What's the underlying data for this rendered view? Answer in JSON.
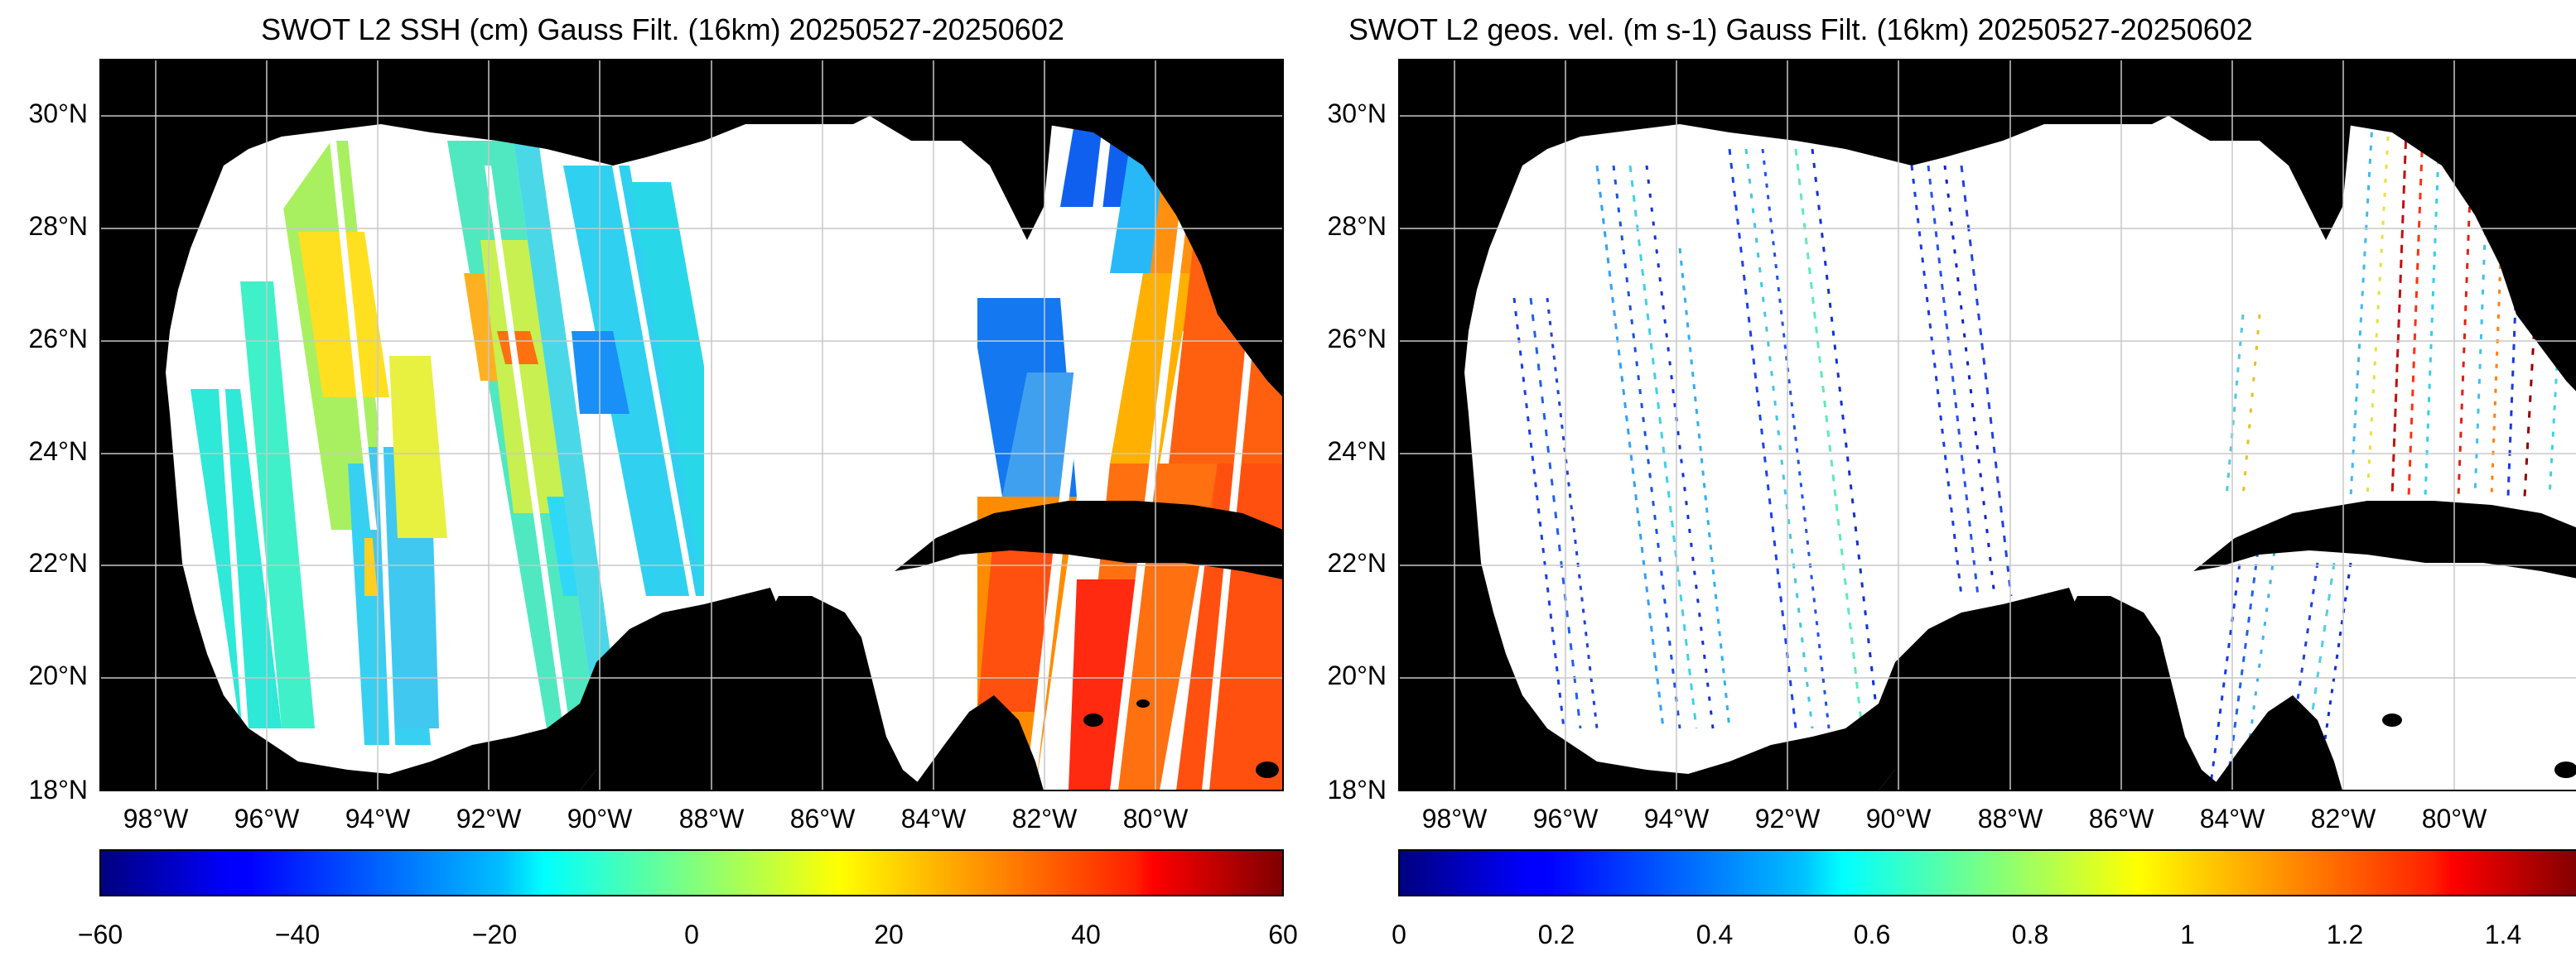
{
  "panels": [
    {
      "id": "ssh",
      "title": "SWOT L2 SSH (cm) Gauss Filt. (16km) 20250527-20250602",
      "colorbar": {
        "min": -60,
        "max": 60,
        "ticks": [
          "−60",
          "−40",
          "−20",
          "0",
          "20",
          "40",
          "60"
        ]
      }
    },
    {
      "id": "vel",
      "title": "SWOT L2 geos. vel. (m s-1) Gauss Filt. (16km) 20250527-20250602",
      "colorbar": {
        "min": 0,
        "max": 1.5,
        "ticks": [
          "0",
          "0.2",
          "0.4",
          "0.6",
          "0.8",
          "1",
          "1.2",
          "1.4"
        ]
      }
    }
  ],
  "map": {
    "lon_range": [
      -99.5,
      -78.0
    ],
    "lat_range": [
      18.0,
      31.0
    ],
    "lon_ticks": [
      "98°W",
      "96°W",
      "94°W",
      "92°W",
      "90°W",
      "88°W",
      "86°W",
      "84°W",
      "82°W",
      "80°W"
    ],
    "lat_ticks": [
      "18°N",
      "20°N",
      "22°N",
      "24°N",
      "26°N",
      "28°N",
      "30°N"
    ],
    "land_color": "#000000",
    "ocean_color": "#ffffff",
    "grid_color": "#c8c8c8"
  },
  "colormap": "jet"
}
